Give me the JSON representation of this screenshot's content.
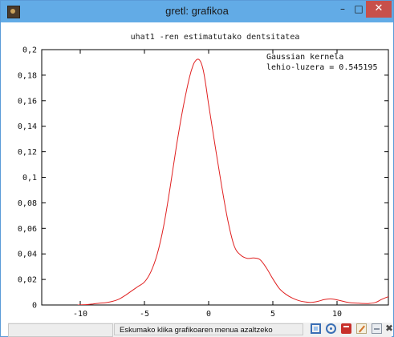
{
  "window": {
    "title": "gretl: grafikoa",
    "minimize_glyph": "–",
    "maximize_glyph": "□",
    "close_glyph": "✕"
  },
  "statusbar": {
    "message": "Eskumako klika grafikoaren menua azaltzeko",
    "icons": [
      "zoom-icon",
      "target-icon",
      "pdf-icon",
      "edit-icon",
      "print-icon",
      "close-icon"
    ],
    "close_glyph": "✖"
  },
  "chart_data": {
    "type": "line",
    "title": "uhat1 -ren estimatutako dentsitatea",
    "xlabel": "",
    "ylabel": "",
    "xlim": [
      -13,
      14
    ],
    "ylim": [
      0,
      0.2
    ],
    "xticks": [
      -10,
      -5,
      0,
      5,
      10
    ],
    "xtick_labels": [
      "-10",
      "-5",
      "0",
      "5",
      "10"
    ],
    "yticks": [
      0,
      0.02,
      0.04,
      0.06,
      0.08,
      0.1,
      0.12,
      0.14,
      0.16,
      0.18,
      0.2
    ],
    "ytick_labels": [
      "0",
      "0,02",
      "0,04",
      "0,06",
      "0,08",
      "0,1",
      "0,12",
      "0,14",
      "0,16",
      "0,18",
      "0,2"
    ],
    "grid": false,
    "annotations": [
      "Gaussian kernela",
      "lehio-luzera = 0.545195"
    ],
    "line_color": "#e02020",
    "series": [
      {
        "x": [
          -10.2,
          -9.5,
          -9.0,
          -8.5,
          -8.0,
          -7.5,
          -7.0,
          -6.5,
          -6.0,
          -5.5,
          -5.0,
          -4.5,
          -4.0,
          -3.5,
          -3.0,
          -2.5,
          -2.0,
          -1.5,
          -1.2,
          -1.0,
          -0.8,
          -0.6,
          -0.4,
          -0.2,
          0.0,
          0.5,
          1.0,
          1.5,
          2.0,
          2.5,
          3.0,
          3.5,
          4.0,
          4.5,
          5.0,
          5.5,
          6.0,
          6.5,
          7.0,
          7.5,
          8.0,
          8.5,
          9.0,
          9.5,
          10.0,
          10.5,
          11.0,
          11.5,
          12.0,
          12.5,
          13.0,
          13.5,
          14.0
        ],
        "y": [
          0.0,
          0.0003,
          0.0008,
          0.0014,
          0.0018,
          0.0028,
          0.0045,
          0.0075,
          0.011,
          0.0145,
          0.018,
          0.026,
          0.04,
          0.062,
          0.092,
          0.125,
          0.154,
          0.178,
          0.188,
          0.1915,
          0.1925,
          0.19,
          0.183,
          0.171,
          0.157,
          0.125,
          0.094,
          0.066,
          0.046,
          0.039,
          0.0365,
          0.0368,
          0.0355,
          0.029,
          0.0205,
          0.013,
          0.0085,
          0.0055,
          0.0035,
          0.0024,
          0.002,
          0.0028,
          0.0042,
          0.0048,
          0.004,
          0.0028,
          0.0018,
          0.0015,
          0.0012,
          0.0012,
          0.002,
          0.0045,
          0.0065
        ]
      }
    ]
  }
}
